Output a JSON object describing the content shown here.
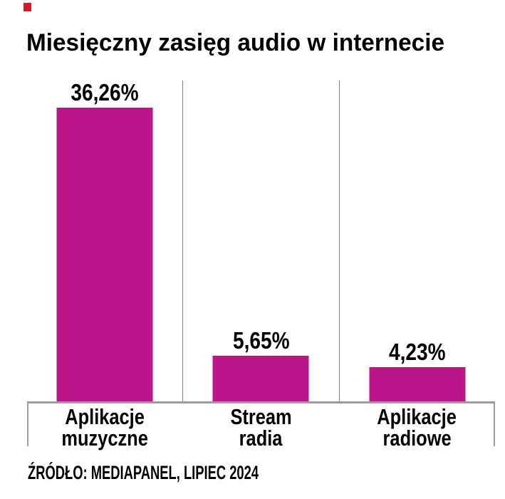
{
  "brand_mark": {
    "color": "#d7182a"
  },
  "title": "Miesięczny zasięg audio w internecie",
  "source_note": "ŹRÓDŁO: MEDIAPANEL, LIPIEC 2024",
  "chart_data": {
    "type": "bar",
    "title": "Miesięczny zasięg audio w internecie",
    "categories": [
      "Aplikacje muzyczne",
      "Stream radia",
      "Aplikacje radiowe"
    ],
    "category_lines": [
      [
        "Aplikacje",
        "muzyczne"
      ],
      [
        "Stream",
        "radia"
      ],
      [
        "Aplikacje",
        "radiowe"
      ]
    ],
    "values": [
      36.26,
      5.65,
      4.23
    ],
    "value_labels": [
      "36,26%",
      "5,65%",
      "4,23%"
    ],
    "unit": "percent",
    "ylim": [
      0,
      40
    ],
    "bar_color": "#bc158b",
    "axis_color": "#9c9c9c",
    "divider_color": "#7d7d7d",
    "grid": false,
    "legend": "none",
    "source": "ŹRÓDŁO: MEDIAPANEL, LIPIEC 2024"
  }
}
